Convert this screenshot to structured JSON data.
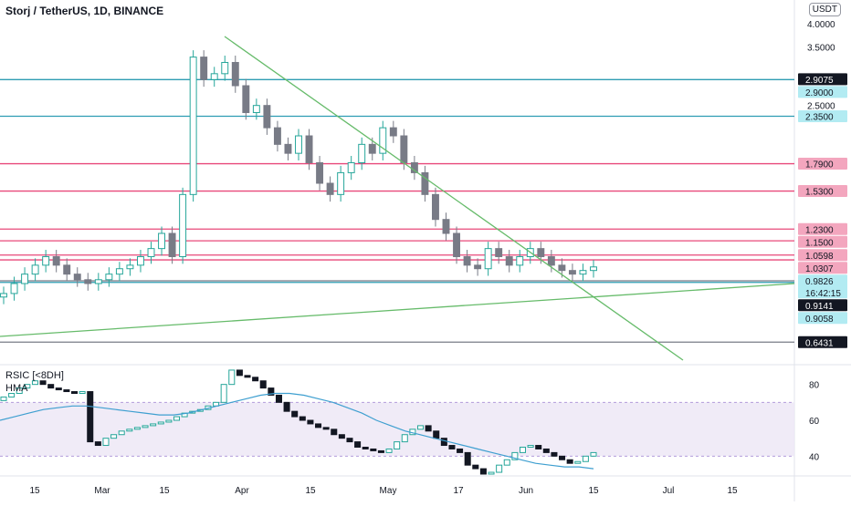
{
  "header": {
    "symbol_title": "Storj / TetherUS, 1D, BINANCE",
    "currency": "USDT"
  },
  "rsi_panel": {
    "line1": "RSIC [<8DH]",
    "line2": "HMA"
  },
  "colors": {
    "up": "#26a69a",
    "down": "#787b86",
    "teal_level": "#2e9db3",
    "pink_level": "#e8487a",
    "gray_level": "#787b86",
    "trend": "#66bb6a",
    "rsi_line": "#3e9fd0",
    "rsi_band": "#ede7f6",
    "pink_tag": "#f3a6be",
    "teal_tag": "#b2ebf2",
    "dark_tag": "#131722"
  },
  "chart_data": [
    {
      "type": "candlestick",
      "title": "Storj / TetherUS, 1D, BINANCE",
      "y_axis": {
        "ticks": [
          "4.0000",
          "3.5000",
          "2.5000"
        ],
        "scale": "log"
      },
      "x_axis": {
        "ticks": [
          "15",
          "Mar",
          "15",
          "Apr",
          "15",
          "May",
          "17",
          "Jun",
          "15",
          "Jul",
          "15"
        ]
      },
      "price_levels": [
        {
          "label": "2.9075",
          "value": 2.9075,
          "style": "dark"
        },
        {
          "label": "2.9000",
          "value": 2.9,
          "style": "teal"
        },
        {
          "label": "2.3500",
          "value": 2.35,
          "style": "teal"
        },
        {
          "label": "1.7900",
          "value": 1.79,
          "style": "pink"
        },
        {
          "label": "1.5300",
          "value": 1.53,
          "style": "pink"
        },
        {
          "label": "1.2300",
          "value": 1.23,
          "style": "pink"
        },
        {
          "label": "1.1500",
          "value": 1.15,
          "style": "pink"
        },
        {
          "label": "1.0598",
          "value": 1.0598,
          "style": "pink"
        },
        {
          "label": "1.0307",
          "value": 1.0307,
          "style": "pink"
        },
        {
          "label": "0.9826",
          "value": 0.9826,
          "style": "current",
          "countdown": "16:42:15"
        },
        {
          "label": "0.9141",
          "value": 0.9141,
          "style": "dark"
        },
        {
          "label": "0.9058",
          "value": 0.9058,
          "style": "teal"
        },
        {
          "label": "0.6431",
          "value": 0.6431,
          "style": "dark"
        }
      ],
      "candle_close_path": [
        0.85,
        0.9,
        0.95,
        1.0,
        1.05,
        1.0,
        0.95,
        0.92,
        0.9,
        0.92,
        0.95,
        0.98,
        1.0,
        1.05,
        1.1,
        1.2,
        1.05,
        1.5,
        3.3,
        2.9,
        3.0,
        3.2,
        2.8,
        2.4,
        2.5,
        2.2,
        2.0,
        1.9,
        2.1,
        1.8,
        1.6,
        1.5,
        1.7,
        1.8,
        2.0,
        1.9,
        2.2,
        2.1,
        1.8,
        1.7,
        1.5,
        1.3,
        1.2,
        1.05,
        1.0,
        0.98,
        1.1,
        1.05,
        1.0,
        1.05,
        1.1,
        1.05,
        1.0,
        0.97,
        0.95,
        0.97,
        0.99
      ],
      "trendlines": [
        "descending from Apr high",
        "ascending support"
      ]
    },
    {
      "type": "line",
      "title": "RSIC [<8DH]",
      "y_axis": {
        "ticks": [
          "80",
          "60",
          "40"
        ],
        "range": [
          30,
          90
        ]
      },
      "band": [
        40,
        70
      ],
      "rsi_values": [
        73,
        75,
        78,
        80,
        82,
        80,
        78,
        77,
        76,
        75,
        76,
        48,
        46,
        50,
        52,
        54,
        55,
        56,
        57,
        58,
        59,
        60,
        62,
        64,
        65,
        66,
        68,
        70,
        80,
        88,
        85,
        84,
        82,
        78,
        74,
        70,
        65,
        62,
        60,
        58,
        56,
        55,
        52,
        50,
        48,
        45,
        44,
        43,
        42,
        44,
        48,
        52,
        55,
        57,
        54,
        50,
        46,
        44,
        42,
        35,
        33,
        30,
        31,
        35,
        38,
        42,
        45,
        46,
        44,
        42,
        40,
        38,
        36,
        37,
        40,
        42
      ],
      "hma_values": [
        60,
        62,
        64,
        66,
        67,
        68,
        68,
        67,
        66,
        65,
        64,
        63,
        63,
        64,
        66,
        68,
        70,
        72,
        74,
        75,
        75,
        74,
        72,
        70,
        67,
        64,
        60,
        57,
        54,
        52,
        50,
        48,
        46,
        44,
        42,
        40,
        38,
        36,
        35,
        34,
        34,
        33
      ]
    }
  ]
}
